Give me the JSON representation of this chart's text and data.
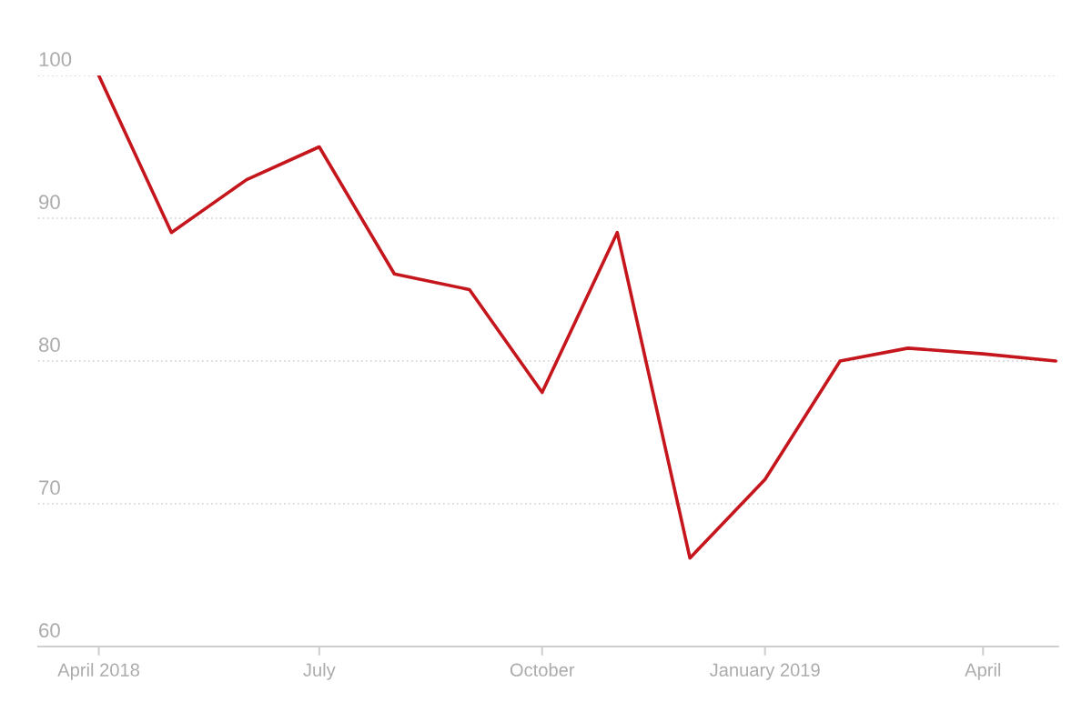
{
  "chart_data": {
    "type": "line",
    "x": [
      "2018-04",
      "2018-05",
      "2018-06",
      "2018-07",
      "2018-08",
      "2018-09",
      "2018-10",
      "2018-11",
      "2018-12",
      "2019-01",
      "2019-02",
      "2019-03",
      "2019-04",
      "2019-05"
    ],
    "series": [
      {
        "color": "#c4161c",
        "values": [
          100,
          89.0,
          92.7,
          95.0,
          86.1,
          85.0,
          77.8,
          89.0,
          66.2,
          71.7,
          80.0,
          80.9,
          80.5,
          80.0
        ]
      }
    ],
    "xlim": [
      "2018-03-07",
      "2019-05-02"
    ],
    "xticks": [
      {
        "value": "2018-04",
        "label": "April 2018"
      },
      {
        "value": "2018-07",
        "label": "July"
      },
      {
        "value": "2018-10",
        "label": "October"
      },
      {
        "value": "2019-01",
        "label": "January 2019"
      },
      {
        "value": "2019-04",
        "label": "April"
      }
    ],
    "ylim": [
      60,
      100
    ],
    "yticks": [
      60,
      70,
      80,
      90,
      100
    ],
    "grid": "y",
    "marker": "none",
    "line_style": "solid"
  }
}
